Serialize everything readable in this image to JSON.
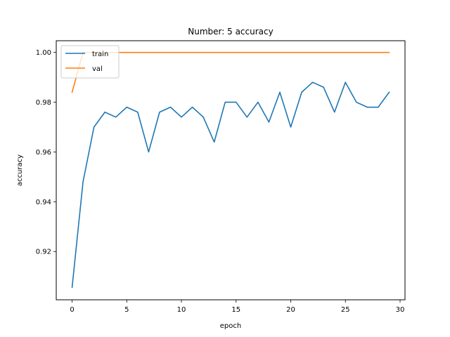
{
  "chart_data": {
    "type": "line",
    "title": "Number: 5 accuracy",
    "xlabel": "epoch",
    "ylabel": "accuracy",
    "xlim": [
      -1.45,
      30.45
    ],
    "ylim": [
      0.9006,
      1.0047
    ],
    "xticks": [
      0,
      5,
      10,
      15,
      20,
      25,
      30
    ],
    "yticks": [
      0.92,
      0.94,
      0.96,
      0.98,
      1.0
    ],
    "xtick_labels": [
      "0",
      "5",
      "10",
      "15",
      "20",
      "25",
      "30"
    ],
    "ytick_labels": [
      "0.92",
      "0.94",
      "0.96",
      "0.98",
      "1.00"
    ],
    "grid": false,
    "legend_position": "upper-left",
    "x": [
      0,
      1,
      2,
      3,
      4,
      5,
      6,
      7,
      8,
      9,
      10,
      11,
      12,
      13,
      14,
      15,
      16,
      17,
      18,
      19,
      20,
      21,
      22,
      23,
      24,
      25,
      26,
      27,
      28,
      29
    ],
    "series": [
      {
        "name": "train",
        "color": "#1f77b4",
        "values": [
          0.9056,
          0.948,
          0.97,
          0.976,
          0.974,
          0.978,
          0.976,
          0.96,
          0.976,
          0.978,
          0.974,
          0.978,
          0.974,
          0.964,
          0.98,
          0.98,
          0.974,
          0.98,
          0.972,
          0.984,
          0.97,
          0.984,
          0.988,
          0.986,
          0.976,
          0.988,
          0.98,
          0.978,
          0.978,
          0.984
        ]
      },
      {
        "name": "val",
        "color": "#ff7f0e",
        "values": [
          0.984,
          1.0,
          1.0,
          1.0,
          1.0,
          1.0,
          1.0,
          1.0,
          1.0,
          1.0,
          1.0,
          1.0,
          1.0,
          1.0,
          1.0,
          1.0,
          1.0,
          1.0,
          1.0,
          1.0,
          1.0,
          1.0,
          1.0,
          1.0,
          1.0,
          1.0,
          1.0,
          1.0,
          1.0,
          1.0
        ]
      }
    ]
  }
}
